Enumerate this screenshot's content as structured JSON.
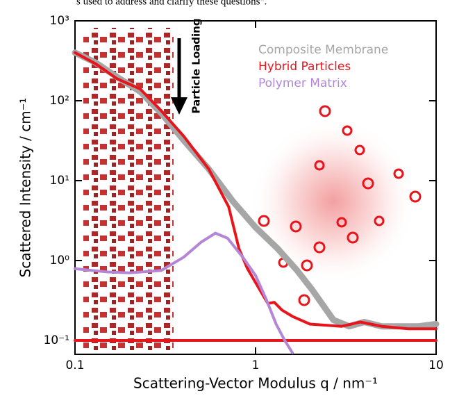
{
  "caption_fragment": "s used to address and clarify these questions\".",
  "chart_data": {
    "type": "line",
    "xlabel": "Scattering-Vector Modulus q / nm⁻¹",
    "ylabel": "Scattered Intensity / cm⁻¹",
    "annotation": "Particle Loading",
    "xscale": "log",
    "yscale": "log",
    "xlim": [
      0.1,
      10
    ],
    "ylim": [
      0.067,
      1000
    ],
    "xticks": [
      0.1,
      1,
      10
    ],
    "yticks": [
      {
        "value": 0.1,
        "label": "10⁻¹"
      },
      {
        "value": 1,
        "label": "10⁰"
      },
      {
        "value": 10,
        "label": "10¹"
      },
      {
        "value": 100,
        "label": "10²"
      },
      {
        "value": 1000,
        "label": "10³"
      }
    ],
    "series": [
      {
        "name": "Composite Membrane",
        "color": "#a6a6a6",
        "x": [
          0.1,
          0.13,
          0.17,
          0.23,
          0.3,
          0.4,
          0.55,
          0.75,
          1.0,
          1.33,
          1.7,
          2.06,
          2.7,
          3.3,
          4.0,
          5.0,
          6.5,
          8.0,
          10
        ],
        "values": [
          400,
          300,
          200,
          130,
          70,
          32,
          14,
          5.5,
          2.6,
          1.4,
          0.75,
          0.43,
          0.18,
          0.15,
          0.17,
          0.15,
          0.15,
          0.15,
          0.16
        ]
      },
      {
        "name": "Hybrid Particles",
        "color": "#e8141b",
        "x": [
          0.1,
          0.13,
          0.17,
          0.23,
          0.3,
          0.4,
          0.55,
          0.71,
          0.81,
          0.9,
          1.0,
          1.17,
          1.27,
          1.4,
          1.6,
          2.0,
          3.0,
          3.8,
          5.0,
          7.0,
          10
        ],
        "values": [
          400,
          290,
          190,
          140,
          75,
          36,
          14,
          4.7,
          1.4,
          0.8,
          0.53,
          0.29,
          0.3,
          0.24,
          0.2,
          0.16,
          0.15,
          0.17,
          0.15,
          0.14,
          0.14
        ]
      },
      {
        "color": "#e8141b",
        "x": [
          0.1,
          10
        ],
        "values": [
          0.1,
          0.1
        ]
      },
      {
        "name": "Polymer Matrix",
        "color": "#b386d6",
        "x": [
          0.1,
          0.15,
          0.2,
          0.3,
          0.4,
          0.5,
          0.6,
          0.7,
          0.85,
          1.0,
          1.15,
          1.3,
          1.45,
          1.6
        ],
        "values": [
          0.79,
          0.72,
          0.7,
          0.75,
          1.1,
          1.7,
          2.2,
          1.9,
          1.1,
          0.65,
          0.32,
          0.16,
          0.1,
          0.07
        ]
      }
    ]
  }
}
